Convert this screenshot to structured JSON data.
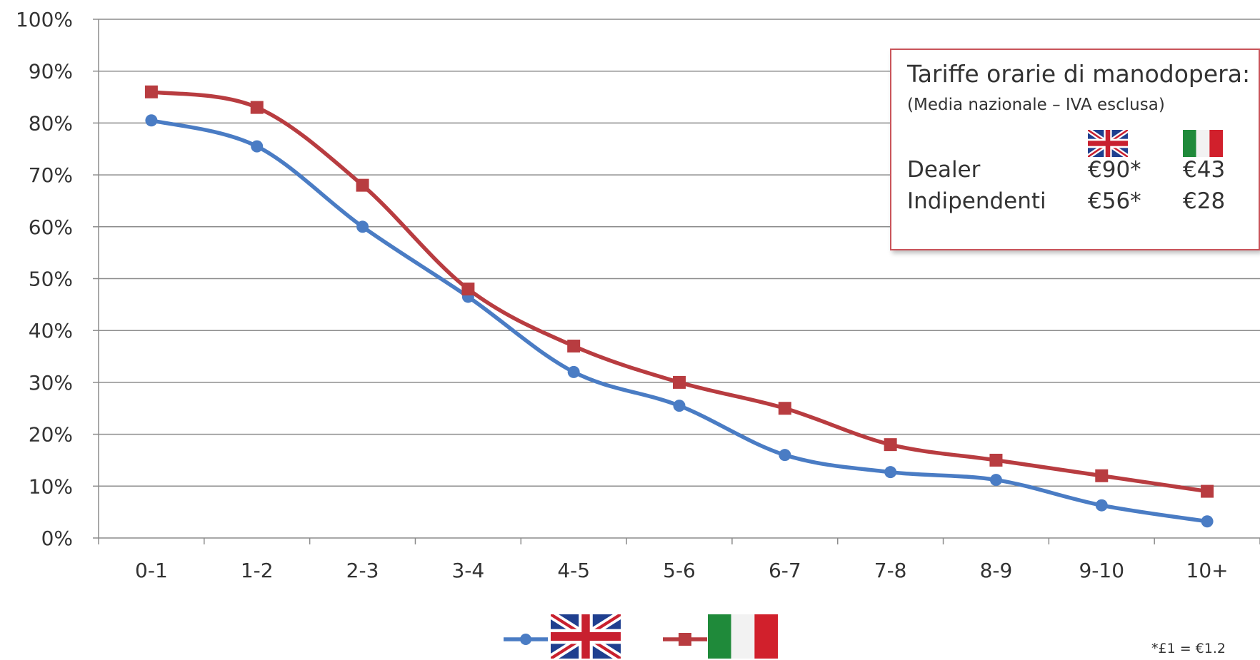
{
  "colors": {
    "uk_series": "#4a7cc4",
    "it_series": "#b83c40",
    "grid": "#8c8c8c",
    "box_border": "#c9545a"
  },
  "chart_data": {
    "type": "line",
    "categories": [
      "0-1",
      "1-2",
      "2-3",
      "3-4",
      "4-5",
      "5-6",
      "6-7",
      "7-8",
      "8-9",
      "9-10",
      "10+"
    ],
    "y_ticks": [
      "0%",
      "10%",
      "20%",
      "30%",
      "40%",
      "50%",
      "60%",
      "70%",
      "80%",
      "90%",
      "100%"
    ],
    "ylim": [
      0,
      100
    ],
    "y_unit": "percent",
    "grid": true,
    "legend_position": "bottom",
    "series": [
      {
        "key": "uk",
        "flag_icon": "uk-flag-icon",
        "marker": "circle",
        "values": [
          80.5,
          75.5,
          60,
          46.5,
          32,
          25.5,
          16,
          12.7,
          11.2,
          6.3,
          3.2
        ]
      },
      {
        "key": "it",
        "flag_icon": "italy-flag-icon",
        "marker": "square",
        "values": [
          86,
          83,
          68,
          48,
          37,
          30,
          25,
          18,
          15,
          12,
          9
        ]
      }
    ]
  },
  "info_box": {
    "title": "Tariffe orarie di manodopera:",
    "subtitle": "(Media nazionale – IVA esclusa)",
    "rows": [
      {
        "label": "Dealer",
        "uk": "€90*",
        "it": "€43"
      },
      {
        "label": "Indipendenti",
        "uk": "€56*",
        "it": "€28"
      }
    ]
  },
  "footnote": "*£1 = €1.2"
}
